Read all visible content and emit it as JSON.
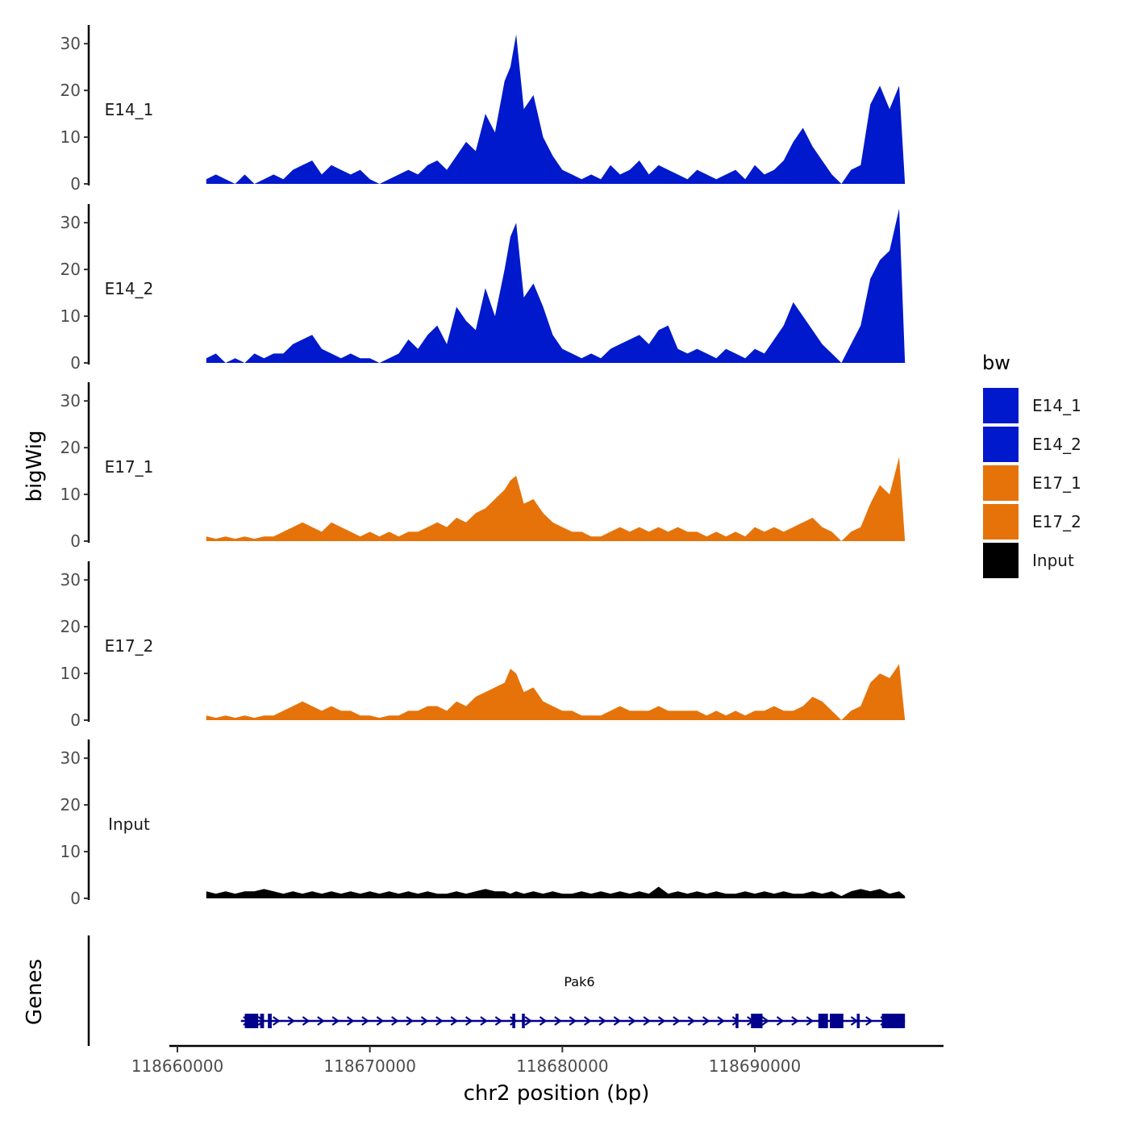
{
  "chart_data": {
    "type": "area",
    "ylabel": "bigWig",
    "xlabel": "chr2 position (bp)",
    "xlim": [
      118660000,
      118700000
    ],
    "ylim": [
      0,
      34
    ],
    "x_ticks": [
      118660000,
      118670000,
      118680000,
      118690000
    ],
    "x_tick_labels": [
      "118660000",
      "118670000",
      "118680000",
      "118690000"
    ],
    "y_ticks": [
      0,
      10,
      20,
      30
    ],
    "y_tick_labels": [
      "0",
      "10",
      "20",
      "30"
    ],
    "track_start": 118661500,
    "track_end": 118697800,
    "legend": {
      "title": "bw",
      "position": "right",
      "entries": [
        {
          "label": "E14_1",
          "color": "#0019CC"
        },
        {
          "label": "E14_2",
          "color": "#0019CC"
        },
        {
          "label": "E17_1",
          "color": "#E6730A"
        },
        {
          "label": "E17_2",
          "color": "#E6730A"
        },
        {
          "label": "Input",
          "color": "#000000"
        }
      ]
    },
    "series": [
      {
        "name": "E14_1",
        "color": "#0019CC",
        "x": [
          118661500,
          118662000,
          118662500,
          118663000,
          118663500,
          118664000,
          118664500,
          118665000,
          118665500,
          118666000,
          118666500,
          118667000,
          118667500,
          118668000,
          118668500,
          118669000,
          118669500,
          118670000,
          118670500,
          118671000,
          118671500,
          118672000,
          118672500,
          118673000,
          118673500,
          118674000,
          118674500,
          118675000,
          118675500,
          118676000,
          118676500,
          118677000,
          118677300,
          118677600,
          118678000,
          118678500,
          118679000,
          118679500,
          118680000,
          118680500,
          118681000,
          118681500,
          118682000,
          118682500,
          118683000,
          118683500,
          118684000,
          118684500,
          118685000,
          118685500,
          118686000,
          118686500,
          118687000,
          118687500,
          118688000,
          118688500,
          118689000,
          118689500,
          118690000,
          118690500,
          118691000,
          118691500,
          118692000,
          118692500,
          118693000,
          118693500,
          118694000,
          118694500,
          118695000,
          118695500,
          118696000,
          118696500,
          118697000,
          118697500,
          118697800
        ],
        "values": [
          1,
          2,
          1,
          0,
          2,
          0,
          1,
          2,
          1,
          3,
          4,
          5,
          2,
          4,
          3,
          2,
          3,
          1,
          0,
          1,
          2,
          3,
          2,
          4,
          5,
          3,
          6,
          9,
          7,
          15,
          11,
          22,
          25,
          32,
          16,
          19,
          10,
          6,
          3,
          2,
          1,
          2,
          1,
          4,
          2,
          3,
          5,
          2,
          4,
          3,
          2,
          1,
          3,
          2,
          1,
          2,
          3,
          1,
          4,
          2,
          3,
          5,
          9,
          12,
          8,
          5,
          2,
          0,
          3,
          4,
          17,
          21,
          16,
          21,
          0
        ]
      },
      {
        "name": "E14_2",
        "color": "#0019CC",
        "x": [
          118661500,
          118662000,
          118662500,
          118663000,
          118663500,
          118664000,
          118664500,
          118665000,
          118665500,
          118666000,
          118666500,
          118667000,
          118667500,
          118668000,
          118668500,
          118669000,
          118669500,
          118670000,
          118670500,
          118671000,
          118671500,
          118672000,
          118672500,
          118673000,
          118673500,
          118674000,
          118674500,
          118675000,
          118675500,
          118676000,
          118676500,
          118677000,
          118677300,
          118677600,
          118678000,
          118678500,
          118679000,
          118679500,
          118680000,
          118680500,
          118681000,
          118681500,
          118682000,
          118682500,
          118683000,
          118683500,
          118684000,
          118684500,
          118685000,
          118685500,
          118686000,
          118686500,
          118687000,
          118687500,
          118688000,
          118688500,
          118689000,
          118689500,
          118690000,
          118690500,
          118691000,
          118691500,
          118692000,
          118692500,
          118693000,
          118693500,
          118694000,
          118694500,
          118695000,
          118695500,
          118696000,
          118696500,
          118697000,
          118697500,
          118697800
        ],
        "values": [
          1,
          2,
          0,
          1,
          0,
          2,
          1,
          2,
          2,
          4,
          5,
          6,
          3,
          2,
          1,
          2,
          1,
          1,
          0,
          1,
          2,
          5,
          3,
          6,
          8,
          4,
          12,
          9,
          7,
          16,
          10,
          20,
          27,
          30,
          14,
          17,
          12,
          6,
          3,
          2,
          1,
          2,
          1,
          3,
          4,
          5,
          6,
          4,
          7,
          8,
          3,
          2,
          3,
          2,
          1,
          3,
          2,
          1,
          3,
          2,
          5,
          8,
          13,
          10,
          7,
          4,
          2,
          0,
          4,
          8,
          18,
          22,
          24,
          33,
          0
        ]
      },
      {
        "name": "E17_1",
        "color": "#E6730A",
        "x": [
          118661500,
          118662000,
          118662500,
          118663000,
          118663500,
          118664000,
          118664500,
          118665000,
          118665500,
          118666000,
          118666500,
          118667000,
          118667500,
          118668000,
          118668500,
          118669000,
          118669500,
          118670000,
          118670500,
          118671000,
          118671500,
          118672000,
          118672500,
          118673000,
          118673500,
          118674000,
          118674500,
          118675000,
          118675500,
          118676000,
          118676500,
          118677000,
          118677300,
          118677600,
          118678000,
          118678500,
          118679000,
          118679500,
          118680000,
          118680500,
          118681000,
          118681500,
          118682000,
          118682500,
          118683000,
          118683500,
          118684000,
          118684500,
          118685000,
          118685500,
          118686000,
          118686500,
          118687000,
          118687500,
          118688000,
          118688500,
          118689000,
          118689500,
          118690000,
          118690500,
          118691000,
          118691500,
          118692000,
          118692500,
          118693000,
          118693500,
          118694000,
          118694500,
          118695000,
          118695500,
          118696000,
          118696500,
          118697000,
          118697500,
          118697800
        ],
        "values": [
          1,
          0.5,
          1,
          0.5,
          1,
          0.5,
          1,
          1,
          2,
          3,
          4,
          3,
          2,
          4,
          3,
          2,
          1,
          2,
          1,
          2,
          1,
          2,
          2,
          3,
          4,
          3,
          5,
          4,
          6,
          7,
          9,
          11,
          13,
          14,
          8,
          9,
          6,
          4,
          3,
          2,
          2,
          1,
          1,
          2,
          3,
          2,
          3,
          2,
          3,
          2,
          3,
          2,
          2,
          1,
          2,
          1,
          2,
          1,
          3,
          2,
          3,
          2,
          3,
          4,
          5,
          3,
          2,
          0,
          2,
          3,
          8,
          12,
          10,
          18,
          0
        ]
      },
      {
        "name": "E17_2",
        "color": "#E6730A",
        "x": [
          118661500,
          118662000,
          118662500,
          118663000,
          118663500,
          118664000,
          118664500,
          118665000,
          118665500,
          118666000,
          118666500,
          118667000,
          118667500,
          118668000,
          118668500,
          118669000,
          118669500,
          118670000,
          118670500,
          118671000,
          118671500,
          118672000,
          118672500,
          118673000,
          118673500,
          118674000,
          118674500,
          118675000,
          118675500,
          118676000,
          118676500,
          118677000,
          118677300,
          118677600,
          118678000,
          118678500,
          118679000,
          118679500,
          118680000,
          118680500,
          118681000,
          118681500,
          118682000,
          118682500,
          118683000,
          118683500,
          118684000,
          118684500,
          118685000,
          118685500,
          118686000,
          118686500,
          118687000,
          118687500,
          118688000,
          118688500,
          118689000,
          118689500,
          118690000,
          118690500,
          118691000,
          118691500,
          118692000,
          118692500,
          118693000,
          118693500,
          118694000,
          118694500,
          118695000,
          118695500,
          118696000,
          118696500,
          118697000,
          118697500,
          118697800
        ],
        "values": [
          1,
          0.5,
          1,
          0.5,
          1,
          0.5,
          1,
          1,
          2,
          3,
          4,
          3,
          2,
          3,
          2,
          2,
          1,
          1,
          0.5,
          1,
          1,
          2,
          2,
          3,
          3,
          2,
          4,
          3,
          5,
          6,
          7,
          8,
          11,
          10,
          6,
          7,
          4,
          3,
          2,
          2,
          1,
          1,
          1,
          2,
          3,
          2,
          2,
          2,
          3,
          2,
          2,
          2,
          2,
          1,
          2,
          1,
          2,
          1,
          2,
          2,
          3,
          2,
          2,
          3,
          5,
          4,
          2,
          0,
          2,
          3,
          8,
          10,
          9,
          12,
          0
        ]
      },
      {
        "name": "Input",
        "color": "#000000",
        "x": [
          118661500,
          118662000,
          118662500,
          118663000,
          118663500,
          118664000,
          118664500,
          118665000,
          118665500,
          118666000,
          118666500,
          118667000,
          118667500,
          118668000,
          118668500,
          118669000,
          118669500,
          118670000,
          118670500,
          118671000,
          118671500,
          118672000,
          118672500,
          118673000,
          118673500,
          118674000,
          118674500,
          118675000,
          118675500,
          118676000,
          118676500,
          118677000,
          118677300,
          118677600,
          118678000,
          118678500,
          118679000,
          118679500,
          118680000,
          118680500,
          118681000,
          118681500,
          118682000,
          118682500,
          118683000,
          118683500,
          118684000,
          118684500,
          118685000,
          118685500,
          118686000,
          118686500,
          118687000,
          118687500,
          118688000,
          118688500,
          118689000,
          118689500,
          118690000,
          118690500,
          118691000,
          118691500,
          118692000,
          118692500,
          118693000,
          118693500,
          118694000,
          118694500,
          118695000,
          118695500,
          118696000,
          118696500,
          118697000,
          118697500,
          118697800
        ],
        "values": [
          1.5,
          1,
          1.5,
          1,
          1.5,
          1.5,
          2,
          1.5,
          1,
          1.5,
          1,
          1.5,
          1,
          1.5,
          1,
          1.5,
          1,
          1.5,
          1,
          1.5,
          1,
          1.5,
          1,
          1.5,
          1,
          1,
          1.5,
          1,
          1.5,
          2,
          1.5,
          1.5,
          1,
          1.5,
          1,
          1.5,
          1,
          1.5,
          1,
          1,
          1.5,
          1,
          1.5,
          1,
          1.5,
          1,
          1.5,
          1,
          2.5,
          1,
          1.5,
          1,
          1.5,
          1,
          1.5,
          1,
          1,
          1.5,
          1,
          1.5,
          1,
          1.5,
          1,
          1,
          1.5,
          1,
          1.5,
          0.5,
          1.5,
          2,
          1.5,
          2,
          1,
          1.5,
          0.5
        ]
      }
    ],
    "genes_track": {
      "label": "Genes",
      "gene_name": "Pak6",
      "color": "#00008B",
      "start": 118663300,
      "end": 118697800,
      "strand": "+",
      "exons": [
        [
          118663500,
          118664200
        ],
        [
          118664300,
          118664500
        ],
        [
          118664700,
          118664900
        ],
        [
          118677400,
          118677550
        ],
        [
          118677900,
          118678050
        ],
        [
          118689000,
          118689150
        ],
        [
          118689800,
          118690400
        ],
        [
          118693300,
          118693800
        ],
        [
          118693900,
          118694600
        ],
        [
          118695300,
          118695450
        ],
        [
          118696600,
          118697800
        ]
      ]
    }
  }
}
